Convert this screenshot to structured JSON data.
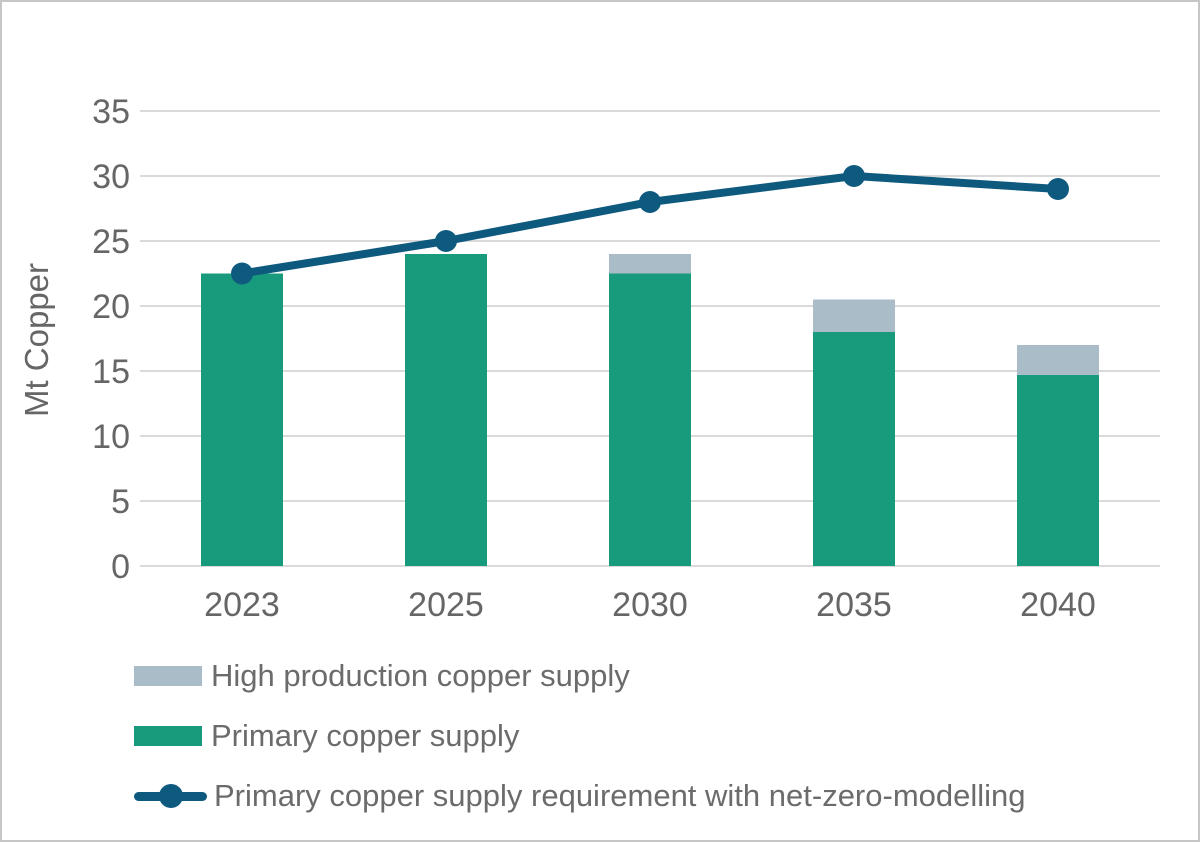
{
  "colors": {
    "primary_green": "#189b7c",
    "high_gray": "#a9bcc8",
    "line_blue": "#0e5a7f",
    "axis_text": "#666666",
    "gridline": "#dadada",
    "frame_border": "#c6c6c6"
  },
  "chart_data": {
    "type": "composite",
    "subtype": "stacked-bar-with-line",
    "categories": [
      "2023",
      "2025",
      "2030",
      "2035",
      "2040"
    ],
    "series": [
      {
        "name": "Primary copper supply",
        "type": "bar",
        "stack_order": 0,
        "color_key": "primary_green",
        "values": [
          22.5,
          24,
          22.5,
          18,
          14.7
        ]
      },
      {
        "name": "High production copper supply",
        "type": "bar",
        "stack_order": 1,
        "color_key": "high_gray",
        "values": [
          0,
          0,
          1.5,
          2.5,
          2.3
        ]
      },
      {
        "name": "Primary copper supply requirement with net-zero-modelling",
        "type": "line",
        "color_key": "line_blue",
        "values": [
          22.5,
          25,
          28,
          30,
          29
        ]
      }
    ],
    "title": "",
    "xlabel": "",
    "ylabel": "Mt Copper",
    "ylim": [
      0,
      35
    ],
    "yticks": [
      0,
      5,
      10,
      15,
      20,
      25,
      30,
      35
    ],
    "grid": true,
    "legend_position": "bottom-left"
  },
  "legend": {
    "items": [
      {
        "label": "High production copper supply",
        "swatch": "bar",
        "color_key": "high_gray"
      },
      {
        "label": "Primary copper supply",
        "swatch": "bar",
        "color_key": "primary_green"
      },
      {
        "label": "Primary copper supply requirement with net-zero-modelling",
        "swatch": "line-marker",
        "color_key": "line_blue"
      }
    ]
  },
  "y_axis": {
    "title": "Mt Copper",
    "tick_labels": [
      "35",
      "30",
      "25",
      "20",
      "15",
      "10",
      "5",
      "0"
    ]
  },
  "x_axis": {
    "tick_labels": [
      "2023",
      "2025",
      "2030",
      "2035",
      "2040"
    ]
  }
}
